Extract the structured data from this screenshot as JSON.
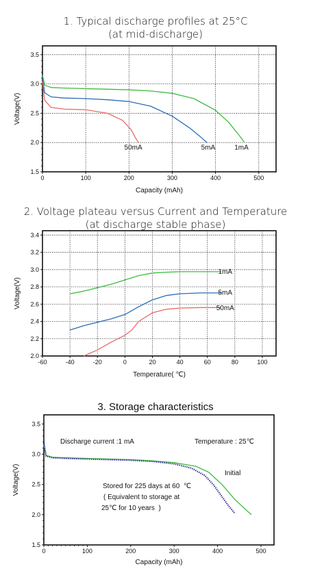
{
  "chart_data": [
    {
      "type": "line",
      "title": "1. Typical discharge profiles at 25°C",
      "subtitle": "(at mid-discharge)",
      "xlabel": "Capacity (mAh)",
      "ylabel": "Voltage(V)",
      "xlim": [
        0,
        540
      ],
      "ylim": [
        1.5,
        3.65
      ],
      "xticks": [
        0,
        100,
        200,
        300,
        400,
        500
      ],
      "yticks": [
        1.5,
        2.0,
        2.5,
        3.0,
        3.5
      ],
      "grid": true,
      "series": [
        {
          "name": "1mA",
          "color": "#3dbb3d",
          "points": [
            [
              0,
              3.15
            ],
            [
              5,
              2.98
            ],
            [
              20,
              2.94
            ],
            [
              50,
              2.93
            ],
            [
              100,
              2.92
            ],
            [
              150,
              2.91
            ],
            [
              200,
              2.9
            ],
            [
              250,
              2.88
            ],
            [
              300,
              2.84
            ],
            [
              350,
              2.75
            ],
            [
              400,
              2.55
            ],
            [
              430,
              2.35
            ],
            [
              455,
              2.12
            ],
            [
              467,
              2.0
            ]
          ]
        },
        {
          "name": "5mA",
          "color": "#2b6cb8",
          "points": [
            [
              0,
              3.12
            ],
            [
              5,
              2.85
            ],
            [
              20,
              2.78
            ],
            [
              50,
              2.76
            ],
            [
              100,
              2.75
            ],
            [
              150,
              2.73
            ],
            [
              200,
              2.7
            ],
            [
              250,
              2.62
            ],
            [
              300,
              2.45
            ],
            [
              340,
              2.25
            ],
            [
              365,
              2.1
            ],
            [
              380,
              2.0
            ]
          ]
        },
        {
          "name": "50mA",
          "color": "#e86a6a",
          "points": [
            [
              0,
              3.05
            ],
            [
              5,
              2.72
            ],
            [
              20,
              2.6
            ],
            [
              50,
              2.57
            ],
            [
              100,
              2.56
            ],
            [
              150,
              2.5
            ],
            [
              185,
              2.38
            ],
            [
              205,
              2.22
            ],
            [
              215,
              2.08
            ],
            [
              222,
              2.0
            ]
          ]
        }
      ],
      "labels": [
        {
          "text": "50mA",
          "x": 210,
          "y": 1.88
        },
        {
          "text": "5mA",
          "x": 383,
          "y": 1.88
        },
        {
          "text": "1mA",
          "x": 460,
          "y": 1.88
        }
      ]
    },
    {
      "type": "line",
      "title": "2. Voltage plateau versus Current and Temperature",
      "subtitle": "(at discharge stable phase)",
      "xlabel": "Temperature( ℃)",
      "ylabel": "Voltage(V)",
      "xlim": [
        -60,
        110
      ],
      "ylim": [
        2.0,
        3.45
      ],
      "xticks": [
        -60,
        -40,
        -20,
        0,
        20,
        40,
        60,
        80,
        100
      ],
      "yticks": [
        2.0,
        2.2,
        2.4,
        2.6,
        2.8,
        3.0,
        3.2,
        3.4
      ],
      "grid": true,
      "series": [
        {
          "name": "1mA",
          "color": "#3dbb3d",
          "points": [
            [
              -40,
              2.72
            ],
            [
              -30,
              2.75
            ],
            [
              -20,
              2.79
            ],
            [
              -10,
              2.83
            ],
            [
              0,
              2.88
            ],
            [
              10,
              2.93
            ],
            [
              20,
              2.96
            ],
            [
              30,
              2.97
            ],
            [
              40,
              2.975
            ],
            [
              55,
              2.975
            ],
            [
              70,
              2.975
            ]
          ]
        },
        {
          "name": "5mA",
          "color": "#2b6cb8",
          "points": [
            [
              -40,
              2.3
            ],
            [
              -30,
              2.35
            ],
            [
              -20,
              2.39
            ],
            [
              -10,
              2.43
            ],
            [
              0,
              2.48
            ],
            [
              10,
              2.57
            ],
            [
              20,
              2.65
            ],
            [
              30,
              2.7
            ],
            [
              40,
              2.72
            ],
            [
              55,
              2.73
            ],
            [
              70,
              2.73
            ]
          ]
        },
        {
          "name": "50mA",
          "color": "#e86a6a",
          "points": [
            [
              -30,
              2.0
            ],
            [
              -20,
              2.07
            ],
            [
              -10,
              2.16
            ],
            [
              0,
              2.24
            ],
            [
              5,
              2.3
            ],
            [
              10,
              2.4
            ],
            [
              20,
              2.5
            ],
            [
              30,
              2.54
            ],
            [
              40,
              2.555
            ],
            [
              55,
              2.56
            ],
            [
              70,
              2.56
            ]
          ]
        }
      ],
      "labels": [
        {
          "text": "1mA",
          "x": 73,
          "y": 2.95
        },
        {
          "text": "5mA",
          "x": 73,
          "y": 2.71
        },
        {
          "text": "50mA",
          "x": 73,
          "y": 2.53
        }
      ]
    },
    {
      "type": "line",
      "title": "3. Storage characteristics",
      "xlabel": "Capacity (mAh)",
      "ylabel": "Voltage(V)",
      "xlim": [
        0,
        530
      ],
      "ylim": [
        1.5,
        3.65
      ],
      "xticks": [
        0,
        100,
        200,
        300,
        400,
        500
      ],
      "yticks": [
        1.5,
        2.0,
        2.5,
        3.0,
        3.5
      ],
      "grid": false,
      "series": [
        {
          "name": "Initial",
          "color": "#3dbb3d",
          "points": [
            [
              0,
              3.15
            ],
            [
              5,
              2.98
            ],
            [
              20,
              2.95
            ],
            [
              50,
              2.94
            ],
            [
              100,
              2.93
            ],
            [
              150,
              2.92
            ],
            [
              200,
              2.91
            ],
            [
              250,
              2.89
            ],
            [
              300,
              2.86
            ],
            [
              350,
              2.8
            ],
            [
              380,
              2.7
            ],
            [
              410,
              2.5
            ],
            [
              440,
              2.25
            ],
            [
              470,
              2.05
            ],
            [
              478,
              2.0
            ]
          ]
        },
        {
          "name": "Stored",
          "color": "#2a2a8c",
          "points": [
            [
              0,
              3.2
            ],
            [
              5,
              2.97
            ],
            [
              20,
              2.94
            ],
            [
              50,
              2.93
            ],
            [
              100,
              2.92
            ],
            [
              150,
              2.91
            ],
            [
              200,
              2.9
            ],
            [
              250,
              2.88
            ],
            [
              300,
              2.84
            ],
            [
              340,
              2.77
            ],
            [
              370,
              2.65
            ],
            [
              390,
              2.5
            ],
            [
              410,
              2.3
            ],
            [
              425,
              2.15
            ],
            [
              440,
              2.02
            ]
          ]
        }
      ],
      "annotations": {
        "current": "Discharge current :1 mA",
        "temperature": "Temperature : 25℃",
        "initial": "Initial",
        "stored_1": "Stored for 225 days at 60  ℃",
        "stored_2": "( Equivalent to storage at",
        "stored_3": "25℃ for 10 years  )"
      }
    }
  ]
}
